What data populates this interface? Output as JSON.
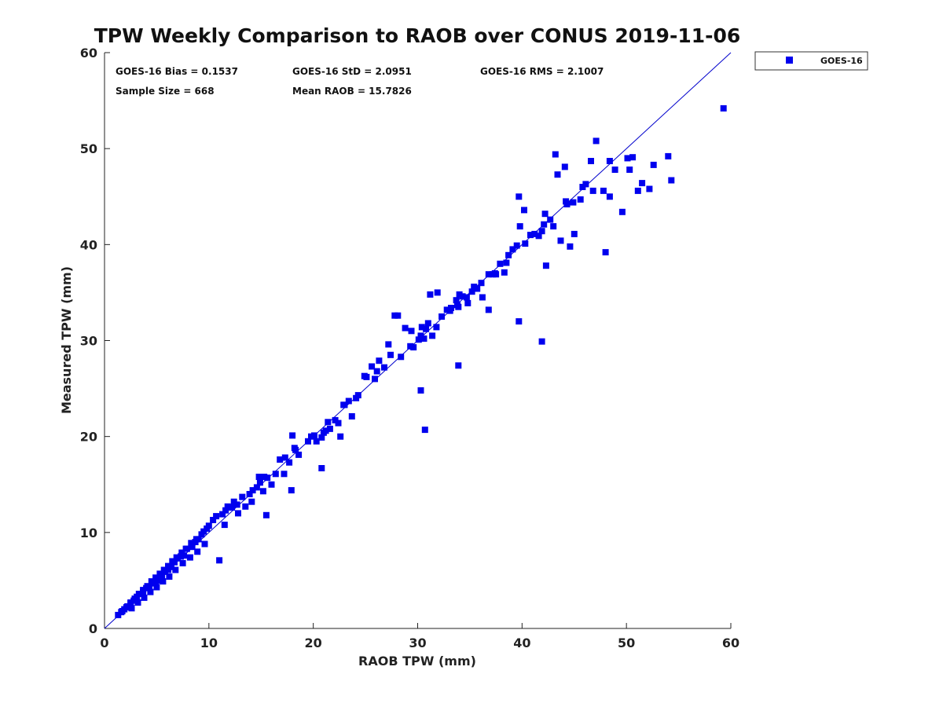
{
  "chart_data": {
    "type": "scatter",
    "title": "TPW Weekly Comparison to RAOB over CONUS 2019-11-06",
    "xlabel": "RAOB TPW (mm)",
    "ylabel": "Measured TPW (mm)",
    "xlim": [
      0,
      60
    ],
    "ylim": [
      0,
      60
    ],
    "xticks": [
      0,
      10,
      20,
      30,
      40,
      50,
      60
    ],
    "yticks": [
      0,
      10,
      20,
      30,
      40,
      50,
      60
    ],
    "grid": false,
    "legend": {
      "placement": "outside-top-right",
      "entries": [
        "GOES-16"
      ]
    },
    "reference_line": {
      "name": "1:1 line",
      "from": [
        0,
        0
      ],
      "to": [
        60,
        60
      ],
      "color": "#0000cc"
    },
    "stats": {
      "bias": "GOES-16 Bias = 0.1537",
      "std": "GOES-16 StD = 2.0951",
      "rms": "GOES-16 RMS = 2.1007",
      "sample": "Sample Size = 668",
      "mean": "Mean RAOB = 15.7826"
    },
    "series": [
      {
        "name": "GOES-16",
        "color": "#0000ee",
        "marker": "square",
        "x": [
          59.3,
          47.1,
          43.2,
          44.1,
          50.6,
          52.6,
          54.0,
          54.3,
          48.4,
          46.6,
          50.3,
          51.1,
          48.4,
          49.6,
          52.2,
          45.8,
          44.2,
          43.4,
          39.7,
          40.2,
          42.1,
          44.9,
          46.1,
          47.8,
          39.8,
          41.2,
          43.0,
          45.0,
          44.6,
          48.0,
          42.3,
          43.7,
          36.8,
          37.2,
          37.9,
          38.5,
          38.3,
          39.1,
          40.3,
          41.6,
          42.2,
          37.5,
          35.7,
          35.2,
          34.0,
          33.7,
          33.9,
          34.8,
          36.2,
          36.8,
          31.2,
          31.9,
          32.3,
          32.8,
          30.8,
          31.4,
          33.1,
          33.8,
          34.3,
          35.4,
          27.8,
          28.1,
          28.8,
          29.3,
          29.4,
          27.2,
          30.4,
          31.0,
          30.1,
          30.6,
          24.9,
          25.6,
          26.3,
          26.8,
          27.4,
          24.1,
          25.1,
          26.1,
          21.4,
          22.1,
          22.9,
          23.4,
          24.3,
          20.3,
          21.2,
          21.6,
          22.4,
          23.0,
          20.8,
          16.8,
          17.7,
          18.3,
          19.5,
          20.1,
          18.2,
          18.0,
          17.2,
          16.0,
          15.6,
          14.6,
          15.3,
          14.8,
          14.2,
          13.9,
          14.9,
          13.2,
          12.7,
          12.2,
          11.8,
          12.4,
          11.6,
          10.7,
          11.3,
          10.0,
          9.5,
          9.0,
          8.7,
          8.4,
          7.9,
          7.6,
          7.3,
          7.0,
          6.7,
          6.4,
          6.1,
          5.8,
          5.5,
          5.2,
          4.9,
          4.6,
          4.3,
          4.0,
          3.7,
          3.4,
          3.1,
          2.8,
          2.5,
          2.2,
          1.9,
          1.6,
          1.3,
          10.4,
          9.8,
          9.3,
          8.8,
          8.3,
          7.8,
          7.4,
          6.9,
          6.5,
          6.1,
          5.7,
          5.3,
          4.9,
          4.5,
          4.1,
          3.7,
          3.3,
          2.9,
          2.5,
          2.1,
          1.7,
          9.6,
          8.9,
          8.2,
          7.5,
          6.8,
          6.2,
          5.6,
          5.0,
          4.4,
          3.8,
          3.2,
          2.6,
          11.5,
          12.8,
          13.5,
          14.1,
          15.2,
          16.4,
          17.3,
          18.6,
          19.8,
          21.0,
          22.6,
          23.7,
          25.9,
          28.4,
          29.6,
          30.3,
          31.8,
          33.2,
          34.7,
          36.1,
          37.4,
          38.7,
          39.5,
          40.8,
          41.9,
          42.7,
          44.3,
          45.6,
          46.8,
          48.9,
          50.1,
          51.5,
          33.9,
          41.9,
          39.7,
          30.7,
          30.3,
          20.8,
          11.0,
          15.5,
          17.9
        ],
        "y": [
          54.2,
          50.8,
          49.4,
          48.1,
          49.1,
          48.3,
          49.2,
          46.7,
          48.7,
          48.7,
          47.8,
          45.6,
          45.0,
          43.4,
          45.8,
          46.0,
          44.5,
          47.3,
          45.0,
          43.6,
          42.1,
          44.4,
          46.3,
          45.6,
          41.9,
          41.1,
          41.9,
          41.1,
          39.8,
          39.2,
          37.8,
          40.4,
          36.9,
          36.9,
          38.0,
          38.1,
          37.1,
          39.5,
          40.1,
          40.9,
          43.2,
          36.9,
          35.4,
          35.1,
          34.8,
          34.2,
          33.5,
          33.9,
          34.5,
          33.2,
          34.8,
          35.0,
          32.5,
          33.2,
          31.2,
          30.5,
          33.1,
          33.7,
          34.6,
          35.6,
          32.6,
          32.6,
          31.3,
          29.4,
          31.0,
          29.6,
          31.4,
          31.8,
          30.1,
          30.2,
          26.3,
          27.3,
          27.9,
          27.2,
          28.5,
          24.0,
          26.2,
          26.8,
          21.5,
          21.7,
          23.3,
          23.7,
          24.3,
          19.5,
          20.6,
          20.8,
          21.4,
          23.3,
          19.9,
          17.6,
          17.3,
          18.6,
          19.5,
          20.1,
          18.8,
          20.1,
          16.1,
          15.0,
          15.7,
          14.7,
          15.8,
          15.8,
          14.4,
          14.0,
          15.2,
          13.7,
          12.9,
          12.6,
          12.7,
          13.2,
          12.3,
          11.7,
          11.9,
          10.7,
          10.1,
          9.3,
          9.0,
          8.5,
          8.3,
          7.6,
          7.5,
          7.3,
          6.9,
          6.4,
          6.1,
          5.9,
          5.5,
          5.0,
          4.9,
          4.7,
          4.3,
          4.2,
          3.8,
          3.6,
          3.3,
          2.9,
          2.6,
          2.3,
          2.0,
          1.7,
          1.4,
          11.3,
          10.4,
          9.8,
          9.3,
          8.9,
          8.3,
          7.9,
          7.4,
          7.0,
          6.5,
          6.1,
          5.7,
          5.3,
          4.9,
          4.4,
          4.0,
          3.6,
          3.1,
          2.7,
          2.2,
          1.8,
          8.8,
          8.0,
          7.4,
          6.8,
          6.1,
          5.4,
          4.9,
          4.3,
          3.8,
          3.2,
          2.7,
          2.1,
          10.8,
          12.0,
          12.7,
          13.2,
          14.3,
          16.1,
          17.8,
          18.1,
          20.0,
          20.4,
          20.0,
          22.1,
          26.0,
          28.3,
          29.3,
          30.5,
          31.4,
          33.4,
          34.5,
          36.0,
          37.0,
          38.9,
          39.9,
          41.0,
          41.4,
          42.6,
          44.2,
          44.7,
          45.6,
          47.8,
          49.0,
          46.4,
          27.4,
          29.9,
          32.0,
          20.7,
          24.8,
          16.7,
          7.1,
          11.8,
          14.4
        ]
      }
    ]
  }
}
